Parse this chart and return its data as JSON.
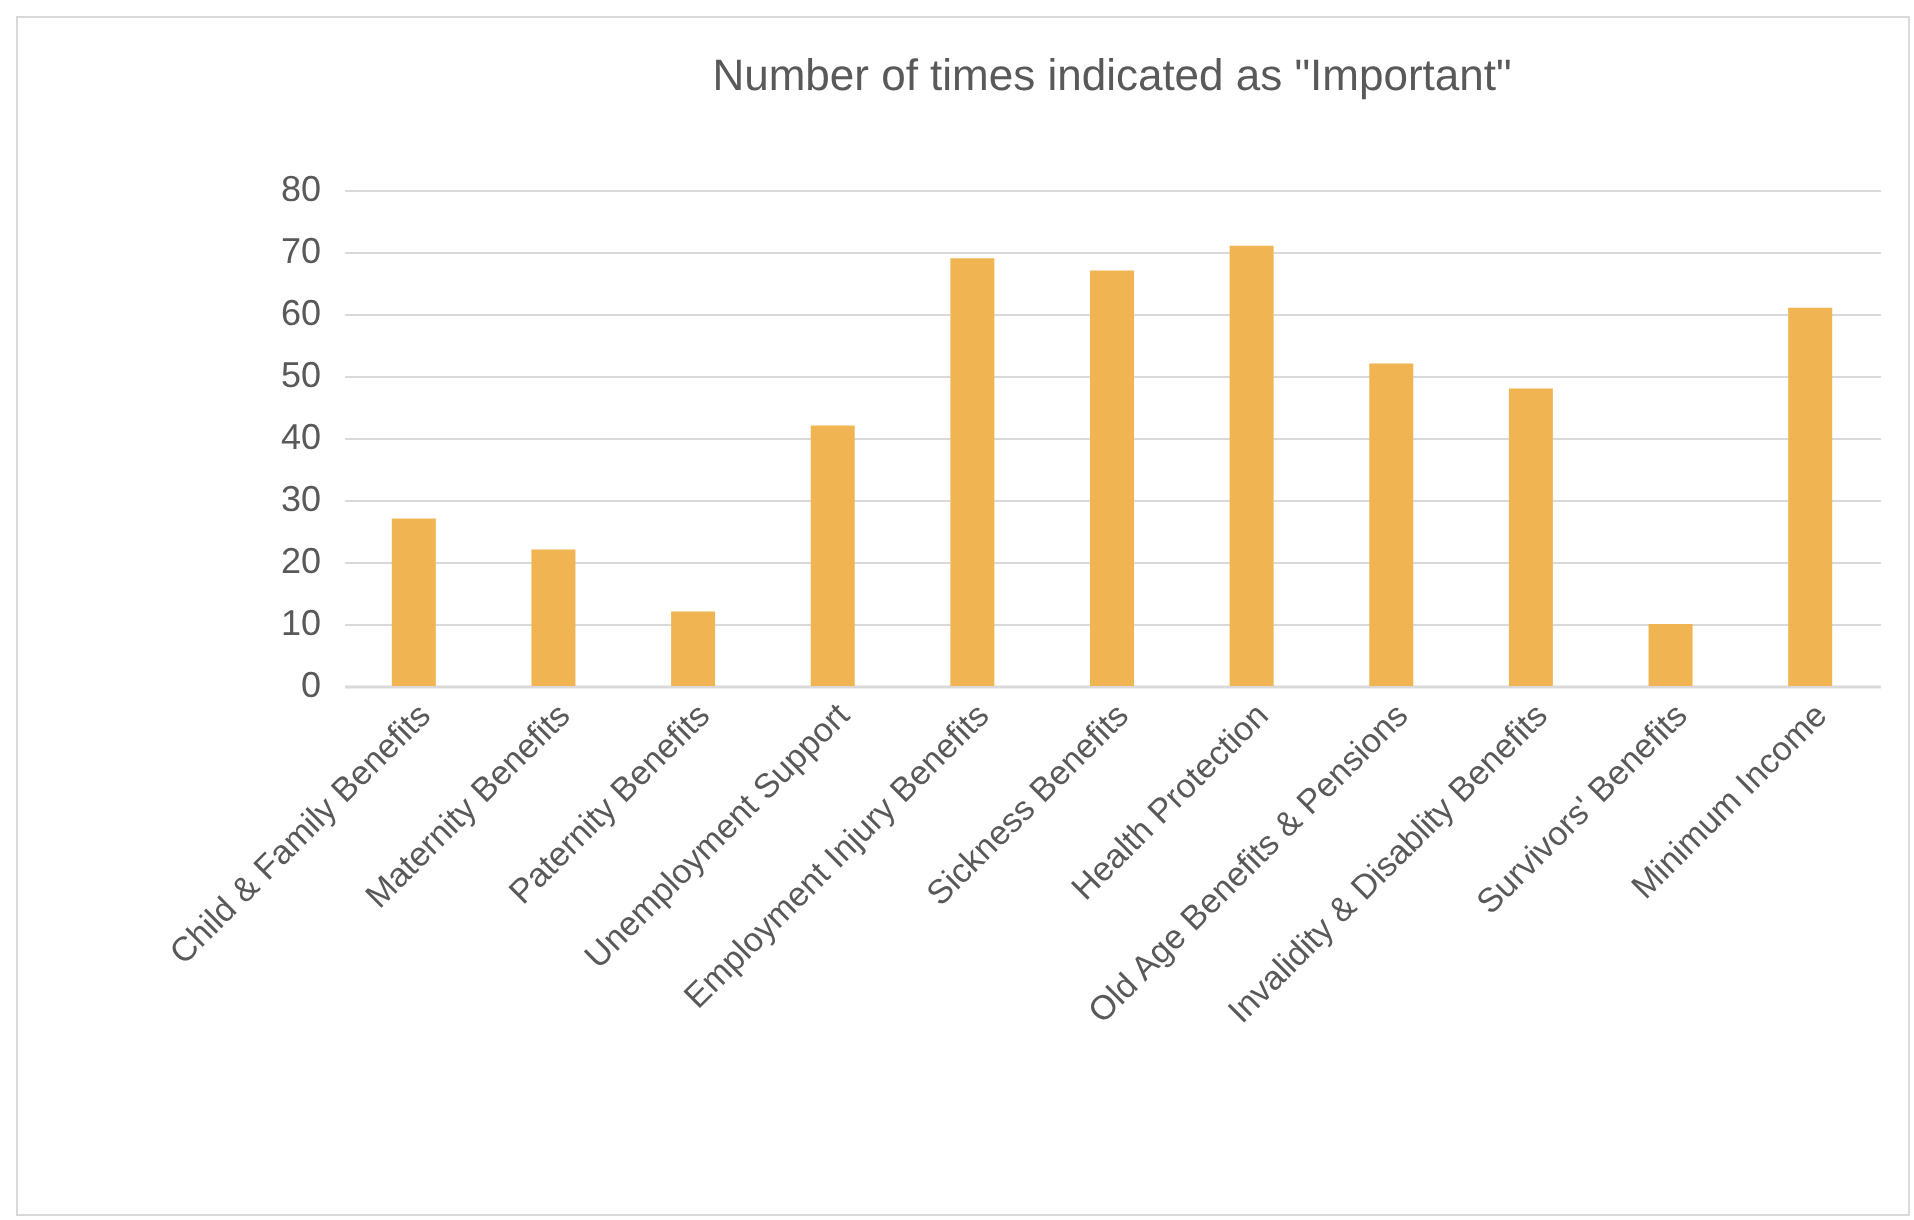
{
  "chart_data": {
    "type": "bar",
    "title": "Number of times indicated as \"Important\"",
    "categories": [
      "Child & Family Benefits",
      "Maternity Benefits",
      "Paternity Benefits",
      "Unemployment Support",
      "Employment Injury Benefits",
      "Sickness Benefits",
      "Health Protection",
      "Old Age Benefits & Pensions",
      "Invalidity & Disablity Benefits",
      "Survivors' Benefits",
      "Minimum Income"
    ],
    "values": [
      27,
      22,
      12,
      42,
      69,
      67,
      71,
      52,
      48,
      10,
      61
    ],
    "color": "#f0b552",
    "ylim": [
      0,
      80
    ],
    "yticks": [
      0,
      10,
      20,
      30,
      40,
      50,
      60,
      70,
      80
    ],
    "grid": "y"
  }
}
